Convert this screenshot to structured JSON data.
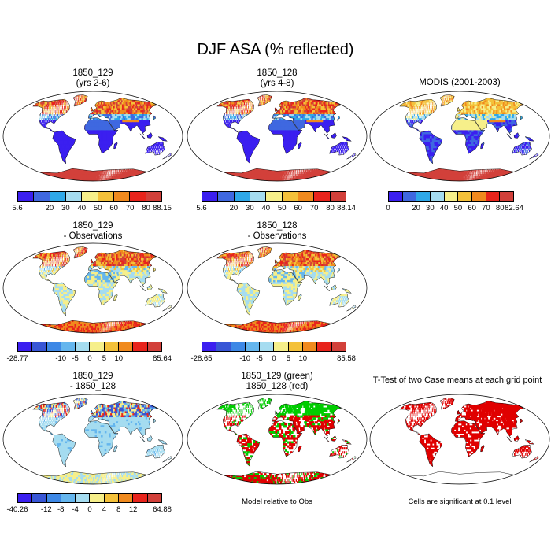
{
  "figure": {
    "title": "DJF ASA (% reflected)"
  },
  "colors": {
    "abs_scale": [
      "#3b1ff0",
      "#3f68e0",
      "#2ea8e8",
      "#a5dcf0",
      "#f6ef8a",
      "#f4c13a",
      "#f08a1e",
      "#e8241c",
      "#d2403a"
    ],
    "diff_scale": [
      "#3b1ff0",
      "#3856d6",
      "#3d88e6",
      "#65b6ee",
      "#a5dcf0",
      "#f6ef8a",
      "#f4c13a",
      "#f08a1e",
      "#e8241c",
      "#d2403a"
    ],
    "ttest_mark": "#e00000",
    "green_mark": "#00cc00",
    "red_mark": "#e00000",
    "coast": "#000000"
  },
  "chart_data": [
    {
      "type": "heatmap",
      "panel": "row1-col1",
      "title_line1": "1850_129",
      "title_line2": "(yrs 2-6)",
      "colorbar": {
        "labels": [
          "5.6",
          "20",
          "30",
          "40",
          "50",
          "60",
          "70",
          "80",
          "88.15"
        ]
      },
      "style": "abs"
    },
    {
      "type": "heatmap",
      "panel": "row1-col2",
      "title_line1": "1850_128",
      "title_line2": "(yrs 4-8)",
      "colorbar": {
        "labels": [
          "5.6",
          "20",
          "30",
          "40",
          "50",
          "60",
          "70",
          "80",
          "88.14"
        ]
      },
      "style": "abs"
    },
    {
      "type": "heatmap",
      "panel": "row1-col3",
      "title_line1": "MODIS (2001-2003)",
      "title_line2": "",
      "colorbar": {
        "labels": [
          "0",
          "20",
          "30",
          "40",
          "50",
          "60",
          "70",
          "80",
          "82.64"
        ]
      },
      "style": "obs"
    },
    {
      "type": "heatmap",
      "panel": "row2-col1",
      "title_line1": "1850_129",
      "title_line2": "- Observations",
      "colorbar": {
        "labels": [
          "-28.77",
          "-10",
          "-5",
          "0",
          "5",
          "10",
          "85.64"
        ]
      },
      "style": "diff"
    },
    {
      "type": "heatmap",
      "panel": "row2-col2",
      "title_line1": "1850_128",
      "title_line2": "- Observations",
      "colorbar": {
        "labels": [
          "-28.65",
          "-10",
          "-5",
          "0",
          "5",
          "10",
          "85.58"
        ]
      },
      "style": "diff"
    },
    {
      "type": "heatmap",
      "panel": "row3-col1",
      "title_line1": "1850_129",
      "title_line2": "- 1850_128",
      "colorbar": {
        "labels": [
          "-40.26",
          "-12",
          "-8",
          "-4",
          "0",
          "4",
          "8",
          "12",
          "64.88"
        ]
      },
      "style": "case-diff"
    },
    {
      "type": "heatmap",
      "panel": "row3-col2",
      "title_line1": "1850_129 (green)",
      "title_line2": "1850_128 (red)",
      "note": "Model relative to Obs",
      "style": "greenred"
    },
    {
      "type": "heatmap",
      "panel": "row3-col3",
      "title_line1": "T-Test of two Case means at each grid point",
      "title_line2": "",
      "note": "Cells are significant at 0.1 level",
      "style": "ttest"
    }
  ]
}
